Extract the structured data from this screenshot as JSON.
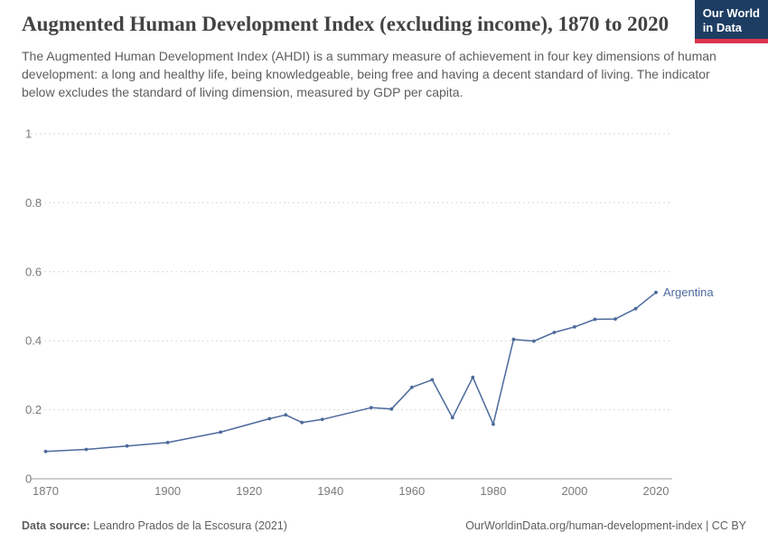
{
  "logo": {
    "line1": "Our World",
    "line2": "in Data"
  },
  "header": {
    "title": "Augmented Human Development Index (excluding income), 1870 to 2020",
    "subtitle": "The Augmented Human Development Index (AHDI) is a summary measure of achievement in four key dimensions of human development: a long and healthy life, being knowledgeable, being free and having a decent standard of living. The indicator below excludes the standard of living dimension, measured by GDP per capita."
  },
  "chart_data": {
    "type": "line",
    "title": "Augmented Human Development Index (excluding income), 1870 to 2020",
    "xlabel": "",
    "ylabel": "",
    "xlim": [
      1869,
      2024
    ],
    "ylim": [
      0,
      1
    ],
    "x_ticks": [
      1870,
      1900,
      1920,
      1940,
      1960,
      1980,
      2000,
      2020
    ],
    "y_ticks": [
      0,
      0.2,
      0.4,
      0.6,
      0.8,
      1
    ],
    "grid": "horizontal-dashed",
    "legend_position": "end-of-line-label",
    "series": [
      {
        "name": "Argentina",
        "color": "#4C6A9C",
        "points": [
          [
            1870,
            0.079
          ],
          [
            1880,
            0.085
          ],
          [
            1890,
            0.095
          ],
          [
            1900,
            0.105
          ],
          [
            1913,
            0.135
          ],
          [
            1925,
            0.174
          ],
          [
            1929,
            0.185
          ],
          [
            1933,
            0.163
          ],
          [
            1938,
            0.172
          ],
          [
            1950,
            0.206
          ],
          [
            1955,
            0.202
          ],
          [
            1960,
            0.265
          ],
          [
            1965,
            0.287
          ],
          [
            1970,
            0.177
          ],
          [
            1975,
            0.294
          ],
          [
            1980,
            0.158
          ],
          [
            1985,
            0.404
          ],
          [
            1990,
            0.399
          ],
          [
            1995,
            0.424
          ],
          [
            2000,
            0.44
          ],
          [
            2005,
            0.462
          ],
          [
            2010,
            0.463
          ],
          [
            2015,
            0.493
          ],
          [
            2020,
            0.54
          ]
        ]
      }
    ],
    "colors": {
      "grid": "#d9d9d9",
      "axis": "#9b9b9b",
      "tick_label": "#7a7a7a"
    }
  },
  "footer": {
    "source_label": "Data source:",
    "source_text": " Leandro Prados de la Escosura (2021)",
    "credit_link": "OurWorldinData.org/human-development-index",
    "credit_suffix": " | CC BY"
  }
}
